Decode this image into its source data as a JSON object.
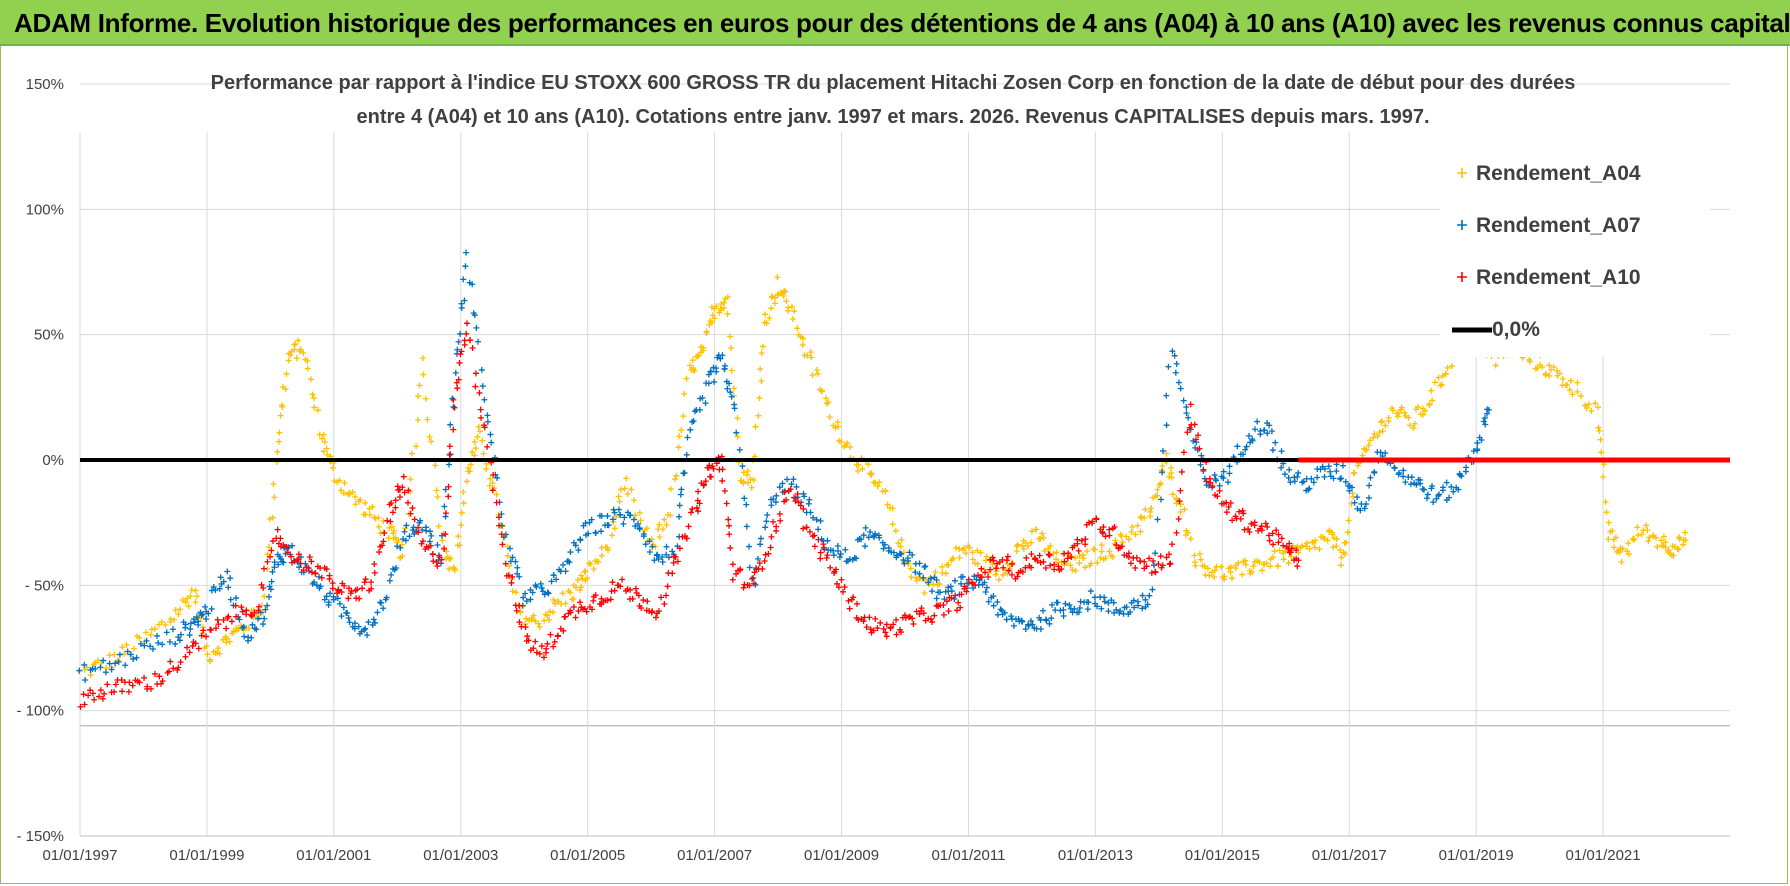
{
  "banner": {
    "title": "ADAM Informe. Evolution historique des performances en euros pour des détentions de 4 ans (A04) à 10 ans (A10) avec les revenus connus capitalisés",
    "color": "#92d050"
  },
  "chart_data": {
    "type": "scatter",
    "title_lines": [
      "Performance par rapport à l'indice EU STOXX 600 GROSS TR  du placement Hitachi Zosen Corp en fonction de la date de début pour des durées",
      "entre 4 (A04) et 10 ans (A10).  Cotations entre janv. 1997 et mars. 2026.  Revenus CAPITALISES depuis mars. 1997."
    ],
    "x_axis": {
      "start_year": 1997,
      "end_year": 2023,
      "tick_labels": [
        "01/01/1997",
        "01/01/1999",
        "01/01/2001",
        "01/01/2003",
        "01/01/2005",
        "01/01/2007",
        "01/01/2009",
        "01/01/2011",
        "01/01/2013",
        "01/01/2015",
        "01/01/2017",
        "01/01/2019",
        "01/01/2021"
      ]
    },
    "y_axis": {
      "ylim": [
        -150,
        150
      ],
      "ticks": [
        150,
        100,
        50,
        0,
        -50,
        -100,
        -150
      ],
      "tick_labels": [
        "150%",
        "100%",
        "50%",
        "0%",
        "- 50%",
        "- 100%",
        "- 150%"
      ],
      "grid": true
    },
    "legend": {
      "placement": "top-right",
      "items": [
        {
          "label": "Rendement_A04",
          "color": "#ffc000"
        },
        {
          "label": "Rendement_A07",
          "color": "#0070c0"
        },
        {
          "label": "Rendement_A10",
          "color": "#ff0000"
        },
        {
          "label": "0,0%",
          "color": "#000000"
        }
      ]
    },
    "series": [
      {
        "name": "Rendement_A04",
        "color": "#ffc000",
        "x": [
          1997.0,
          1997.5,
          1998.0,
          1998.5,
          1998.8,
          1999.0,
          1999.3,
          1999.6,
          1999.9,
          2000.1,
          2000.3,
          2000.5,
          2000.8,
          2001.0,
          2001.3,
          2001.6,
          2001.9,
          2002.1,
          2002.4,
          2002.7,
          2002.9,
          2003.1,
          2003.3,
          2003.6,
          2003.9,
          2004.2,
          2004.5,
          2004.8,
          2005.0,
          2005.3,
          2005.6,
          2006.0,
          2006.3,
          2006.6,
          2006.8,
          2007.0,
          2007.2,
          2007.4,
          2007.6,
          2007.8,
          2008.0,
          2008.2,
          2008.5,
          2008.8,
          2009.1,
          2009.4,
          2009.7,
          2010.0,
          2010.3,
          2010.6,
          2010.9,
          2011.2,
          2011.5,
          2011.8,
          2012.1,
          2012.4,
          2012.7,
          2013.0,
          2013.3,
          2013.6,
          2013.9,
          2014.1,
          2014.3,
          2014.6,
          2014.9,
          2015.2,
          2015.5,
          2015.8,
          2016.1,
          2016.4,
          2016.7,
          2016.9,
          2017.1,
          2017.4,
          2017.7,
          2018.0,
          2018.3,
          2018.6,
          2018.9,
          2019.3,
          2019.6,
          2019.9,
          2020.2,
          2020.5,
          2020.9,
          2021.1,
          2021.3,
          2021.6,
          2021.9,
          2022.1,
          2022.3
        ],
        "y": [
          -85,
          -80,
          -72,
          -62,
          -52,
          -78,
          -72,
          -66,
          -58,
          5,
          42,
          45,
          10,
          -5,
          -15,
          -22,
          -30,
          -38,
          40,
          -30,
          -45,
          -5,
          10,
          -20,
          -60,
          -65,
          -58,
          -52,
          -45,
          -35,
          -10,
          -35,
          -20,
          35,
          42,
          60,
          65,
          -5,
          -8,
          55,
          70,
          60,
          40,
          20,
          5,
          -5,
          -15,
          -40,
          -50,
          -45,
          -35,
          -40,
          -45,
          -35,
          -30,
          -40,
          -42,
          -38,
          -35,
          -28,
          -20,
          0,
          -15,
          -40,
          -45,
          -45,
          -42,
          -40,
          -38,
          -35,
          -30,
          -40,
          -5,
          10,
          20,
          15,
          25,
          40,
          55,
          40,
          45,
          40,
          35,
          30,
          20,
          -30,
          -38,
          -28,
          -32,
          -35,
          -32
        ]
      },
      {
        "name": "Rendement_A07",
        "color": "#0070c0",
        "x": [
          1997.0,
          1997.5,
          1998.0,
          1998.5,
          1998.8,
          1999.0,
          1999.3,
          1999.6,
          1999.9,
          2000.1,
          2000.3,
          2000.6,
          2000.9,
          2001.2,
          2001.5,
          2001.8,
          2002.1,
          2002.4,
          2002.7,
          2002.9,
          2003.1,
          2003.4,
          2003.7,
          2004.0,
          2004.3,
          2004.6,
          2004.9,
          2005.2,
          2005.5,
          2005.8,
          2006.1,
          2006.4,
          2006.6,
          2006.9,
          2007.1,
          2007.3,
          2007.6,
          2007.9,
          2008.2,
          2008.5,
          2008.8,
          2009.1,
          2009.4,
          2009.7,
          2010.0,
          2010.3,
          2010.6,
          2010.9,
          2011.2,
          2011.5,
          2011.8,
          2012.1,
          2012.4,
          2012.7,
          2013.0,
          2013.3,
          2013.6,
          2013.9,
          2014.2,
          2014.5,
          2014.8,
          2015.1,
          2015.4,
          2015.7,
          2016.0,
          2016.3,
          2016.6,
          2016.9,
          2017.2,
          2017.5,
          2017.8,
          2018.1,
          2018.4,
          2018.7,
          2019.0,
          2019.2
        ],
        "y": [
          -85,
          -82,
          -75,
          -70,
          -65,
          -60,
          -45,
          -70,
          -62,
          -40,
          -35,
          -45,
          -55,
          -62,
          -68,
          -55,
          -30,
          -25,
          -40,
          35,
          80,
          20,
          -30,
          -55,
          -52,
          -45,
          -30,
          -25,
          -22,
          -25,
          -40,
          -35,
          10,
          30,
          40,
          25,
          -50,
          -15,
          -10,
          -20,
          -35,
          -40,
          -30,
          -35,
          -38,
          -45,
          -55,
          -50,
          -48,
          -62,
          -65,
          -65,
          -60,
          -58,
          -55,
          -60,
          -58,
          -55,
          45,
          10,
          -10,
          -5,
          10,
          15,
          -5,
          -10,
          -5,
          -5,
          -20,
          5,
          -5,
          -10,
          -15,
          -10,
          5,
          20
        ]
      },
      {
        "name": "Rendement_A10",
        "color": "#ff0000",
        "x": [
          1997.0,
          1997.4,
          1997.8,
          1998.2,
          1998.6,
          1999.0,
          1999.4,
          1999.8,
          2000.1,
          2000.4,
          2000.7,
          2001.0,
          2001.3,
          2001.6,
          2001.9,
          2002.1,
          2002.4,
          2002.7,
          2002.9,
          2003.1,
          2003.4,
          2003.7,
          2004.0,
          2004.3,
          2004.6,
          2004.9,
          2005.2,
          2005.5,
          2005.8,
          2006.1,
          2006.4,
          2006.7,
          2006.9,
          2007.1,
          2007.3,
          2007.6,
          2007.9,
          2008.2,
          2008.5,
          2008.8,
          2009.1,
          2009.4,
          2009.7,
          2010.0,
          2010.3,
          2010.6,
          2010.9,
          2011.2,
          2011.5,
          2011.8,
          2012.1,
          2012.4,
          2012.7,
          2013.0,
          2013.3,
          2013.6,
          2013.9,
          2014.2,
          2014.5,
          2014.8,
          2015.1,
          2015.4,
          2015.7,
          2016.0,
          2016.2
        ],
        "y": [
          -95,
          -92,
          -90,
          -88,
          -80,
          -70,
          -62,
          -58,
          -30,
          -40,
          -42,
          -50,
          -55,
          -48,
          -20,
          -10,
          -35,
          -40,
          25,
          55,
          10,
          -40,
          -70,
          -78,
          -65,
          -58,
          -55,
          -50,
          -55,
          -60,
          -40,
          -20,
          -5,
          0,
          -45,
          -50,
          -30,
          -10,
          -30,
          -40,
          -55,
          -65,
          -68,
          -65,
          -62,
          -60,
          -55,
          -45,
          -40,
          -45,
          -38,
          -42,
          -35,
          -25,
          -30,
          -40,
          -42,
          -40,
          20,
          -10,
          -20,
          -25,
          -28,
          -35,
          -40
        ]
      },
      {
        "name": "0,0%",
        "color": "#000000",
        "x": [
          1997.0,
          2016.2
        ],
        "y": [
          0,
          0
        ]
      }
    ],
    "zero_segment": {
      "name": "Rendement_A10 (0%)",
      "color": "#ff0000",
      "x": [
        2016.2,
        2023.0
      ],
      "y": [
        0,
        0
      ]
    }
  }
}
